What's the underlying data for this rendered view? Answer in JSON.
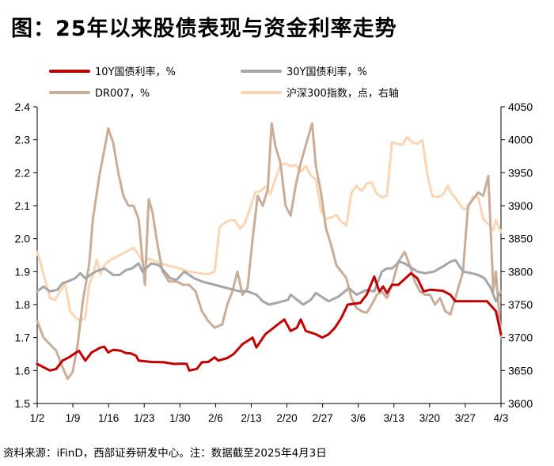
{
  "title": "图：25年以来股债表现与资金利率走势",
  "source_note": "资料来源：iFinD，西部证券研发中心。注：数据截至2025年4月3日",
  "chart_data": {
    "type": "line",
    "x_categories": [
      "1/2",
      "1/9",
      "1/16",
      "1/23",
      "1/30",
      "2/6",
      "2/13",
      "2/20",
      "2/27",
      "3/6",
      "3/13",
      "3/20",
      "3/27",
      "4/3"
    ],
    "y_left": {
      "ticks": [
        "1.5",
        "1.6",
        "1.7",
        "1.8",
        "1.9",
        "2.0",
        "2.1",
        "2.2",
        "2.3",
        "2.4"
      ],
      "range": [
        1.5,
        2.4
      ]
    },
    "y_right": {
      "ticks": [
        "3600",
        "3650",
        "3700",
        "3750",
        "3800",
        "3850",
        "3900",
        "3950",
        "4000",
        "4050"
      ],
      "range": [
        3600,
        4050
      ]
    },
    "grid": false,
    "legend_position": "top",
    "series": [
      {
        "name": "10Y国债利率，%",
        "color": "#c00000",
        "axis": "left",
        "width": 3,
        "points": [
          [
            0,
            1.62
          ],
          [
            0.5,
            1.61
          ],
          [
            1,
            1.6
          ],
          [
            1.5,
            1.605
          ],
          [
            2,
            1.63
          ],
          [
            2.5,
            1.64
          ],
          [
            3.3,
            1.66
          ],
          [
            3.8,
            1.63
          ],
          [
            4.3,
            1.655
          ],
          [
            5,
            1.67
          ],
          [
            5.3,
            1.672
          ],
          [
            5.6,
            1.655
          ],
          [
            6,
            1.663
          ],
          [
            6.6,
            1.66
          ],
          [
            7,
            1.653
          ],
          [
            7.4,
            1.652
          ],
          [
            7.8,
            1.645
          ],
          [
            8,
            1.63
          ],
          [
            9,
            1.626
          ],
          [
            10,
            1.625
          ],
          [
            10.8,
            1.62
          ],
          [
            11.4,
            1.621
          ],
          [
            11.8,
            1.62
          ],
          [
            12,
            1.6
          ],
          [
            12.6,
            1.605
          ],
          [
            13,
            1.625
          ],
          [
            13.5,
            1.626
          ],
          [
            14,
            1.64
          ],
          [
            14.3,
            1.63
          ],
          [
            15,
            1.638
          ],
          [
            15.5,
            1.65
          ],
          [
            16.2,
            1.68
          ],
          [
            17,
            1.7
          ],
          [
            17.3,
            1.67
          ],
          [
            18,
            1.71
          ],
          [
            19,
            1.74
          ],
          [
            19.5,
            1.755
          ],
          [
            20,
            1.72
          ],
          [
            20.5,
            1.73
          ],
          [
            20.8,
            1.755
          ],
          [
            21.2,
            1.72
          ],
          [
            22,
            1.71
          ],
          [
            22.5,
            1.7
          ],
          [
            23,
            1.71
          ],
          [
            23.5,
            1.73
          ],
          [
            24,
            1.76
          ],
          [
            24.5,
            1.8
          ],
          [
            25.5,
            1.805
          ],
          [
            26,
            1.83
          ],
          [
            26.6,
            1.885
          ],
          [
            27,
            1.84
          ],
          [
            27.3,
            1.855
          ],
          [
            27.6,
            1.835
          ],
          [
            28,
            1.86
          ],
          [
            28.5,
            1.86
          ],
          [
            29.5,
            1.895
          ],
          [
            30,
            1.88
          ],
          [
            30.5,
            1.84
          ],
          [
            31,
            1.845
          ],
          [
            32,
            1.842
          ],
          [
            32.6,
            1.83
          ],
          [
            33,
            1.81
          ],
          [
            35,
            1.81
          ],
          [
            35.5,
            1.81
          ],
          [
            36.2,
            1.78
          ],
          [
            36.6,
            1.71
          ]
        ]
      },
      {
        "name": "30Y国债利率，%",
        "color": "#a6a6a6",
        "axis": "left",
        "width": 3,
        "points": [
          [
            0,
            1.84
          ],
          [
            0.5,
            1.855
          ],
          [
            1,
            1.84
          ],
          [
            1.6,
            1.845
          ],
          [
            2,
            1.865
          ],
          [
            2.4,
            1.87
          ],
          [
            3,
            1.88
          ],
          [
            3.4,
            1.895
          ],
          [
            3.8,
            1.88
          ],
          [
            4.6,
            1.9
          ],
          [
            5.3,
            1.91
          ],
          [
            6,
            1.89
          ],
          [
            6.5,
            1.89
          ],
          [
            7,
            1.905
          ],
          [
            7.5,
            1.91
          ],
          [
            8,
            1.925
          ],
          [
            8.3,
            1.9
          ],
          [
            9,
            1.925
          ],
          [
            9.6,
            1.92
          ],
          [
            10.5,
            1.88
          ],
          [
            11,
            1.875
          ],
          [
            11.6,
            1.9
          ],
          [
            12.4,
            1.88
          ],
          [
            13,
            1.87
          ],
          [
            14,
            1.86
          ],
          [
            15,
            1.85
          ],
          [
            16,
            1.84
          ],
          [
            16.6,
            1.84
          ],
          [
            17.3,
            1.83
          ],
          [
            17.8,
            1.81
          ],
          [
            18.3,
            1.8
          ],
          [
            19.4,
            1.81
          ],
          [
            19.8,
            1.815
          ],
          [
            20,
            1.83
          ],
          [
            21,
            1.8
          ],
          [
            21.6,
            1.815
          ],
          [
            22,
            1.835
          ],
          [
            22.6,
            1.82
          ],
          [
            23,
            1.81
          ],
          [
            23.8,
            1.825
          ],
          [
            24.6,
            1.85
          ],
          [
            25.2,
            1.83
          ],
          [
            26,
            1.845
          ],
          [
            26.6,
            1.84
          ],
          [
            27.2,
            1.9
          ],
          [
            27.6,
            1.91
          ],
          [
            28,
            1.91
          ],
          [
            28.6,
            1.93
          ],
          [
            29,
            1.925
          ],
          [
            30,
            1.9
          ],
          [
            30.6,
            1.895
          ],
          [
            31.3,
            1.9
          ],
          [
            32,
            1.915
          ],
          [
            32.6,
            1.93
          ],
          [
            33,
            1.935
          ],
          [
            33.6,
            1.9
          ],
          [
            34.3,
            1.895
          ],
          [
            34.8,
            1.89
          ],
          [
            35.3,
            1.88
          ],
          [
            35.8,
            1.85
          ],
          [
            36.2,
            1.81
          ],
          [
            36.6,
            1.84
          ]
        ]
      },
      {
        "name": "DR007，%",
        "color": "#c9ad99",
        "axis": "left",
        "width": 3,
        "points": [
          [
            0,
            1.75
          ],
          [
            0.5,
            1.7
          ],
          [
            1,
            1.68
          ],
          [
            1.5,
            1.66
          ],
          [
            2,
            1.61
          ],
          [
            2.4,
            1.575
          ],
          [
            2.8,
            1.595
          ],
          [
            3.2,
            1.68
          ],
          [
            3.6,
            1.81
          ],
          [
            4.1,
            1.92
          ],
          [
            4.4,
            2.06
          ],
          [
            4.9,
            2.19
          ],
          [
            5.4,
            2.29
          ],
          [
            5.6,
            2.335
          ],
          [
            6,
            2.29
          ],
          [
            6.4,
            2.2
          ],
          [
            6.8,
            2.13
          ],
          [
            7.2,
            2.1
          ],
          [
            7.6,
            2.1
          ],
          [
            8,
            2.06
          ],
          [
            8.5,
            1.86
          ],
          [
            8.8,
            2.12
          ],
          [
            9.1,
            2.08
          ],
          [
            9.5,
            1.98
          ],
          [
            9.9,
            1.9
          ],
          [
            10.4,
            1.87
          ],
          [
            11,
            1.87
          ],
          [
            11.5,
            1.86
          ],
          [
            12,
            1.86
          ],
          [
            12.5,
            1.84
          ],
          [
            13,
            1.78
          ],
          [
            13.5,
            1.75
          ],
          [
            14,
            1.73
          ],
          [
            14.6,
            1.74
          ],
          [
            15,
            1.8
          ],
          [
            15.4,
            1.84
          ],
          [
            15.8,
            1.9
          ],
          [
            16.2,
            1.83
          ],
          [
            16.6,
            1.85
          ],
          [
            17,
            2.0
          ],
          [
            17.4,
            2.13
          ],
          [
            17.8,
            2.1
          ],
          [
            18.2,
            2.15
          ],
          [
            18.5,
            2.35
          ],
          [
            18.8,
            2.28
          ],
          [
            19.2,
            2.23
          ],
          [
            19.6,
            2.1
          ],
          [
            20,
            2.07
          ],
          [
            20.4,
            2.16
          ],
          [
            20.8,
            2.23
          ],
          [
            21.4,
            2.31
          ],
          [
            21.7,
            2.35
          ],
          [
            22,
            2.22
          ],
          [
            22.4,
            2.14
          ],
          [
            22.8,
            2.03
          ],
          [
            23.2,
            1.98
          ],
          [
            23.6,
            1.92
          ],
          [
            24,
            1.9
          ],
          [
            24.4,
            1.88
          ],
          [
            24.8,
            1.82
          ],
          [
            25.2,
            1.79
          ],
          [
            25.6,
            1.78
          ],
          [
            26,
            1.775
          ],
          [
            26.4,
            1.8
          ],
          [
            26.8,
            1.83
          ],
          [
            27.2,
            1.84
          ],
          [
            27.6,
            1.82
          ],
          [
            28,
            1.86
          ],
          [
            28.5,
            1.93
          ],
          [
            29,
            1.96
          ],
          [
            29.4,
            1.92
          ],
          [
            29.8,
            1.87
          ],
          [
            30.2,
            1.84
          ],
          [
            30.6,
            1.83
          ],
          [
            31,
            1.83
          ],
          [
            31.4,
            1.8
          ],
          [
            31.8,
            1.82
          ],
          [
            32.2,
            1.78
          ],
          [
            32.6,
            1.77
          ],
          [
            33,
            1.82
          ],
          [
            33.6,
            1.9
          ],
          [
            34,
            2.1
          ],
          [
            34.4,
            2.12
          ],
          [
            34.8,
            2.14
          ],
          [
            35.2,
            2.13
          ],
          [
            35.6,
            2.19
          ],
          [
            36,
            1.84
          ],
          [
            36.2,
            1.9
          ],
          [
            36.6,
            1.7
          ]
        ]
      },
      {
        "name": "沪深300指数，点，右轴",
        "color": "#fcd5b4",
        "axis": "right",
        "width": 3,
        "points": [
          [
            0,
            3830
          ],
          [
            0.6,
            3790
          ],
          [
            1,
            3760
          ],
          [
            1.4,
            3757
          ],
          [
            1.8,
            3770
          ],
          [
            2.2,
            3782
          ],
          [
            2.6,
            3740
          ],
          [
            3,
            3731
          ],
          [
            3.4,
            3725
          ],
          [
            3.8,
            3730
          ],
          [
            4.1,
            3780
          ],
          [
            4.4,
            3795
          ],
          [
            4.7,
            3818
          ],
          [
            5,
            3796
          ],
          [
            5.3,
            3810
          ],
          [
            5.6,
            3815
          ],
          [
            6,
            3820
          ],
          [
            6.5,
            3825
          ],
          [
            7,
            3830
          ],
          [
            7.6,
            3836
          ],
          [
            8,
            3826
          ],
          [
            8.4,
            3812
          ],
          [
            8.8,
            3820
          ],
          [
            9.3,
            3816
          ],
          [
            10,
            3811
          ],
          [
            11,
            3806
          ],
          [
            12,
            3800
          ],
          [
            13,
            3797
          ],
          [
            13.5,
            3796
          ],
          [
            14,
            3800
          ],
          [
            14.4,
            3868
          ],
          [
            14.8,
            3874
          ],
          [
            15.2,
            3878
          ],
          [
            15.6,
            3878
          ],
          [
            16,
            3865
          ],
          [
            16.4,
            3874
          ],
          [
            16.8,
            3896
          ],
          [
            17.2,
            3920
          ],
          [
            17.6,
            3922
          ],
          [
            18,
            3929
          ],
          [
            18.4,
            3918
          ],
          [
            18.8,
            3940
          ],
          [
            19.2,
            3962
          ],
          [
            19.6,
            3964
          ],
          [
            20,
            3960
          ],
          [
            20.4,
            3962
          ],
          [
            20.8,
            3952
          ],
          [
            21.2,
            3960
          ],
          [
            21.6,
            3946
          ],
          [
            22,
            3940
          ],
          [
            22.4,
            3892
          ],
          [
            22.8,
            3880
          ],
          [
            23.2,
            3882
          ],
          [
            23.6,
            3886
          ],
          [
            24,
            3876
          ],
          [
            24.4,
            3870
          ],
          [
            24.8,
            3920
          ],
          [
            25.2,
            3930
          ],
          [
            25.6,
            3922
          ],
          [
            26,
            3934
          ],
          [
            26.4,
            3935
          ],
          [
            26.8,
            3918
          ],
          [
            27.2,
            3913
          ],
          [
            27.6,
            3915
          ],
          [
            28,
            3996
          ],
          [
            28.4,
            3994
          ],
          [
            28.8,
            3992
          ],
          [
            29.2,
            4004
          ],
          [
            29.6,
            3996
          ],
          [
            30,
            3994
          ],
          [
            30.4,
            4000
          ],
          [
            30.8,
            3946
          ],
          [
            31.2,
            3914
          ],
          [
            31.6,
            3913
          ],
          [
            32,
            3916
          ],
          [
            32.4,
            3930
          ],
          [
            32.8,
            3916
          ],
          [
            33.2,
            3906
          ],
          [
            33.6,
            3895
          ],
          [
            34,
            3896
          ],
          [
            34.4,
            3913
          ],
          [
            34.8,
            3913
          ],
          [
            35.2,
            3880
          ],
          [
            35.6,
            3872
          ],
          [
            36,
            3863
          ],
          [
            36.2,
            3878
          ],
          [
            36.6,
            3860
          ]
        ]
      }
    ]
  }
}
